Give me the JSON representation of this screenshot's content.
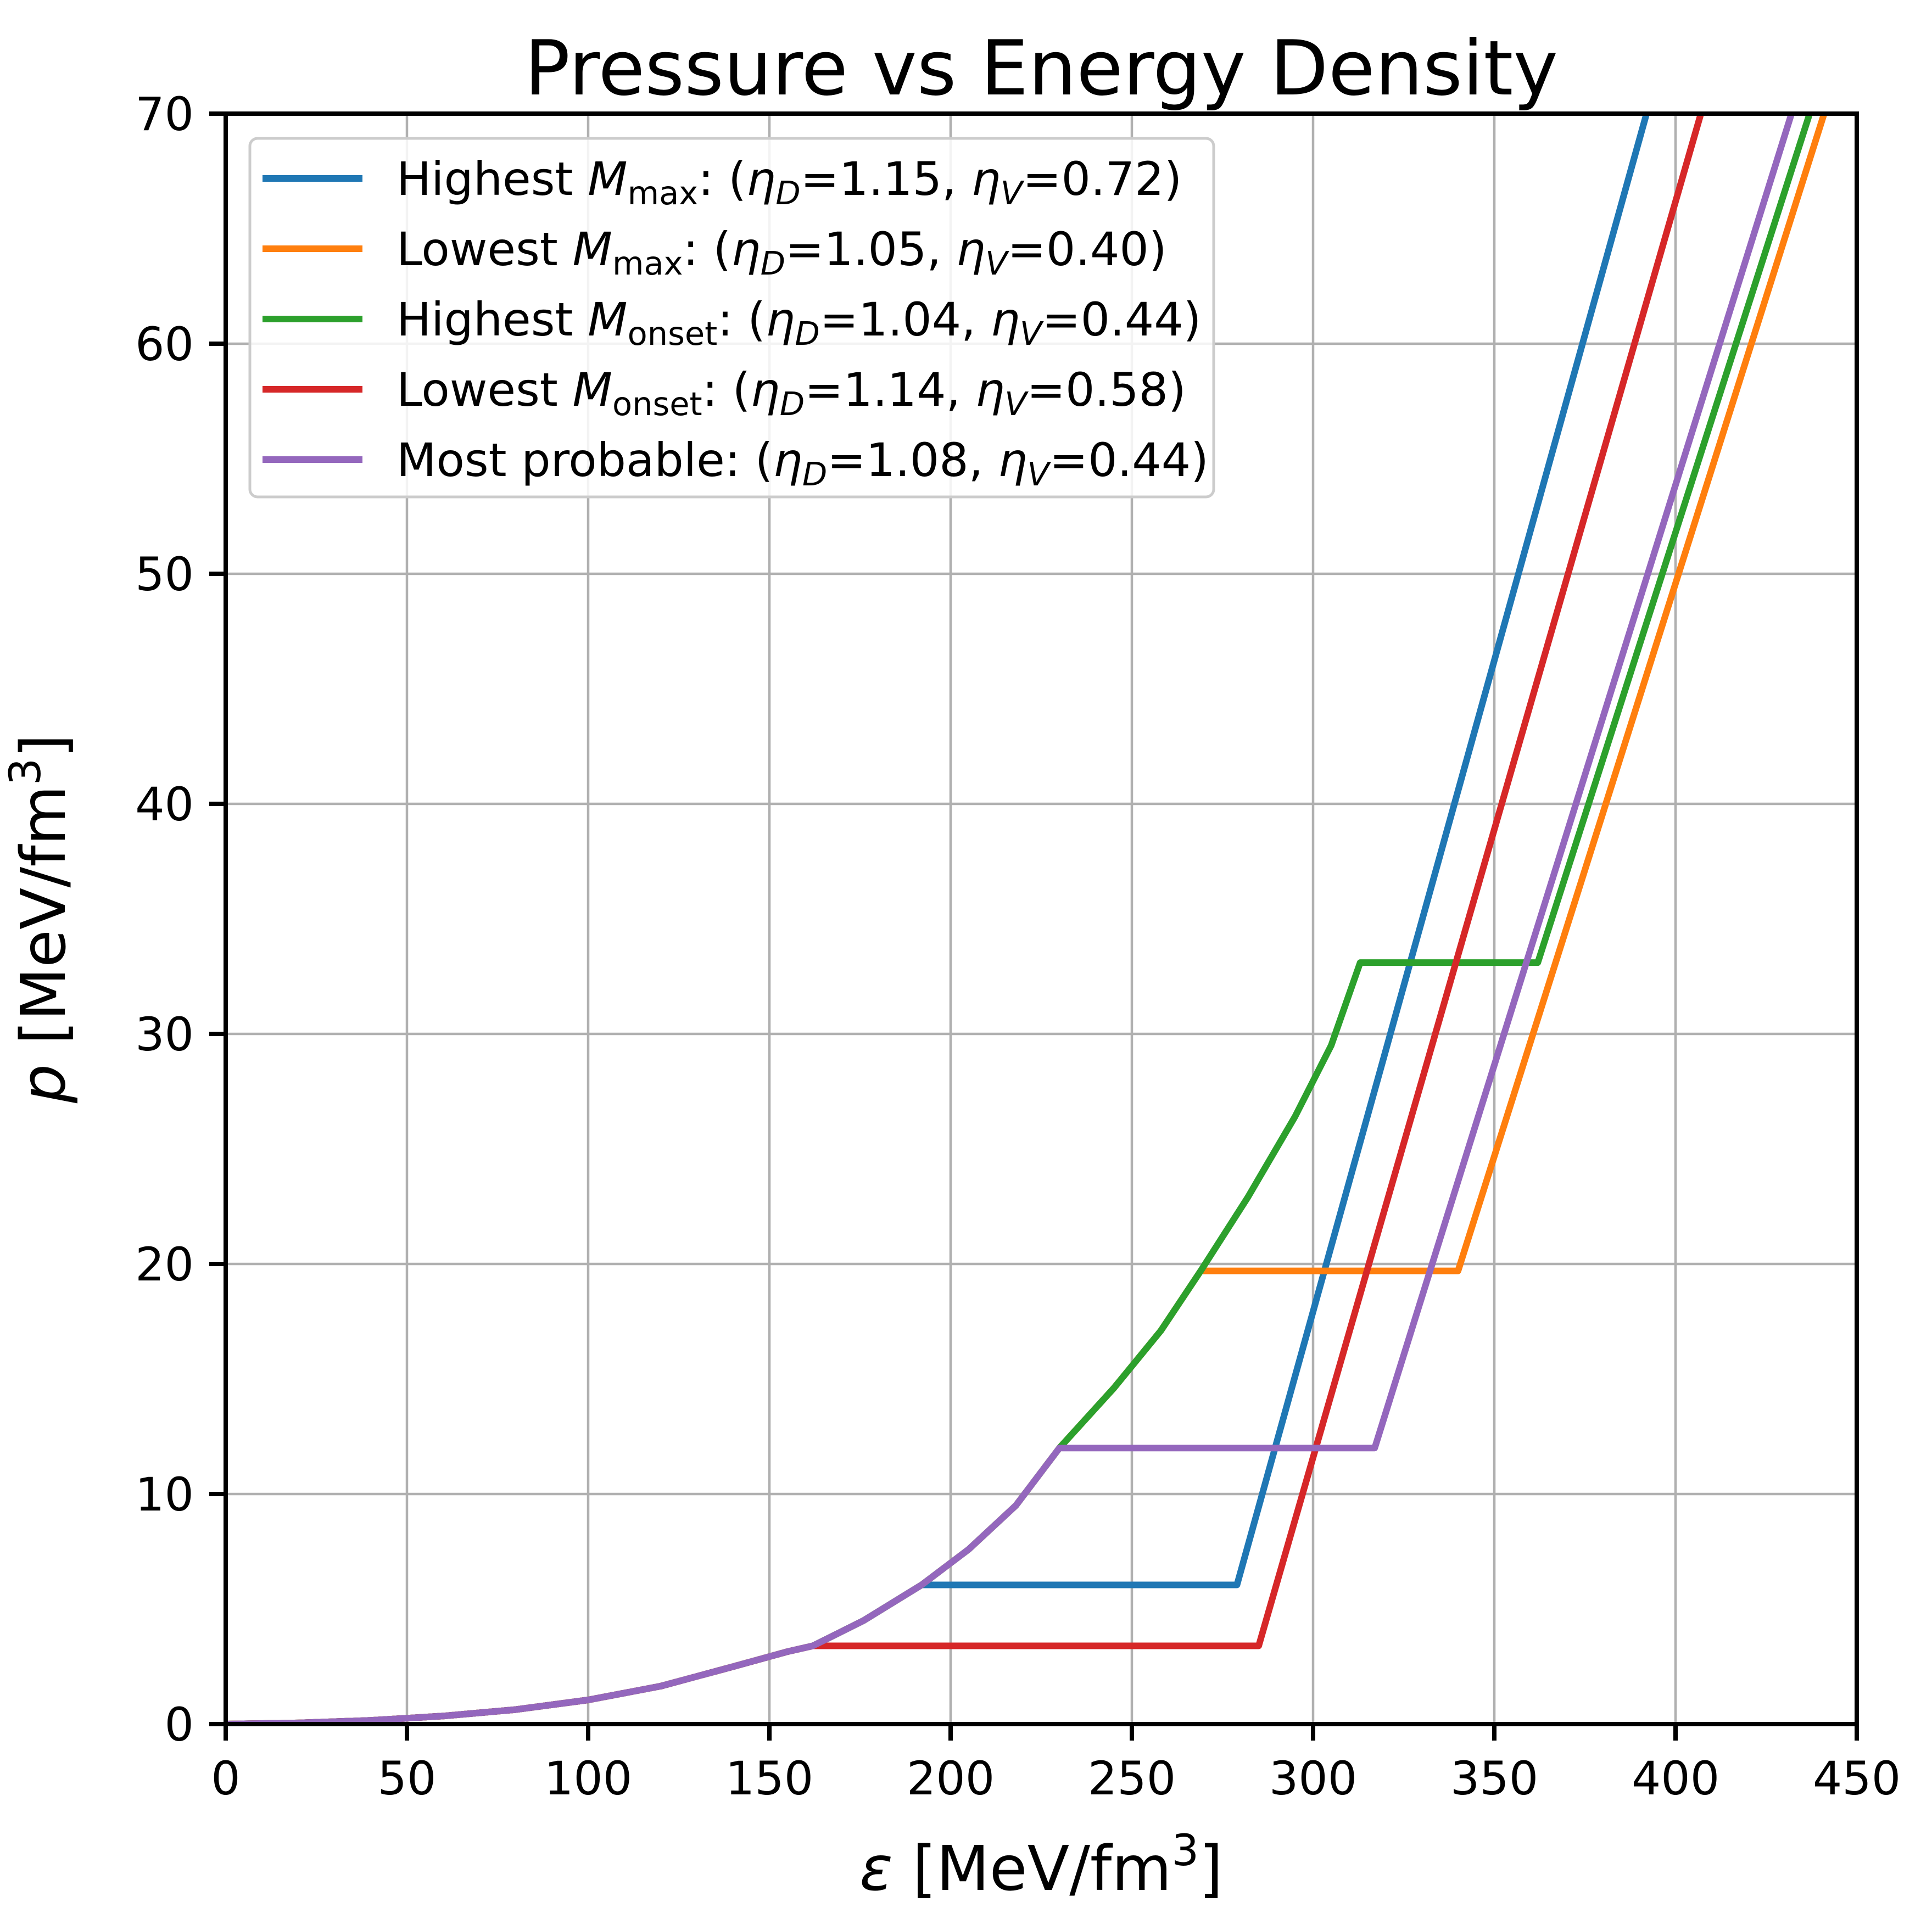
{
  "title": "Pressure vs Energy Density",
  "axes": {
    "x": {
      "label_text": "ε [MeV/fm3]",
      "label_runs": [
        [
          "ε",
          "i"
        ],
        [
          " [MeV/fm",
          "n"
        ],
        [
          "3",
          "sup"
        ],
        [
          "]",
          "n"
        ]
      ],
      "ticks": [
        0,
        50,
        100,
        150,
        200,
        250,
        300,
        350,
        400,
        450
      ],
      "range": [
        0,
        450
      ]
    },
    "y": {
      "label_text": "p [MeV/fm3]",
      "label_runs": [
        [
          "p",
          "i"
        ],
        [
          " [MeV/fm",
          "n"
        ],
        [
          "3",
          "sup"
        ],
        [
          "]",
          "n"
        ]
      ],
      "ticks": [
        0,
        10,
        20,
        30,
        40,
        50,
        60,
        70
      ],
      "range": [
        0,
        70
      ]
    }
  },
  "colors": {
    "grid": "#b0b0b0",
    "spine": "#000000",
    "background": "#ffffff",
    "legend_border": "#cccccc",
    "legend_fill": "#ffffff"
  },
  "legend": {
    "position": "upper left",
    "entries": [
      {
        "name": "highest-mmax",
        "color": "#1f77b4",
        "plain_label": "Highest Mmax: (ηD=1.15, ηV=0.72)",
        "label_runs": [
          [
            "Highest ",
            "n"
          ],
          [
            "M",
            "i"
          ],
          [
            "max",
            "s"
          ],
          [
            ": (",
            "n"
          ],
          [
            "η",
            "i"
          ],
          [
            "D",
            "si"
          ],
          [
            "=1.15, ",
            "n"
          ],
          [
            "η",
            "i"
          ],
          [
            "V",
            "si"
          ],
          [
            "=0.72)",
            "n"
          ]
        ]
      },
      {
        "name": "lowest-mmax",
        "color": "#ff7f0e",
        "plain_label": "Lowest Mmax: (ηD=1.05, ηV=0.40)",
        "label_runs": [
          [
            "Lowest ",
            "n"
          ],
          [
            "M",
            "i"
          ],
          [
            "max",
            "s"
          ],
          [
            ": (",
            "n"
          ],
          [
            "η",
            "i"
          ],
          [
            "D",
            "si"
          ],
          [
            "=1.05, ",
            "n"
          ],
          [
            "η",
            "i"
          ],
          [
            "V",
            "si"
          ],
          [
            "=0.40)",
            "n"
          ]
        ]
      },
      {
        "name": "highest-monset",
        "color": "#2ca02c",
        "plain_label": "Highest Monset: (ηD=1.04, ηV=0.44)",
        "label_runs": [
          [
            "Highest ",
            "n"
          ],
          [
            "M",
            "i"
          ],
          [
            "onset",
            "s"
          ],
          [
            ": (",
            "n"
          ],
          [
            "η",
            "i"
          ],
          [
            "D",
            "si"
          ],
          [
            "=1.04, ",
            "n"
          ],
          [
            "η",
            "i"
          ],
          [
            "V",
            "si"
          ],
          [
            "=0.44)",
            "n"
          ]
        ]
      },
      {
        "name": "lowest-monset",
        "color": "#d62728",
        "plain_label": "Lowest Monset: (ηD=1.14, ηV=0.58)",
        "label_runs": [
          [
            "Lowest ",
            "n"
          ],
          [
            "M",
            "i"
          ],
          [
            "onset",
            "s"
          ],
          [
            ": (",
            "n"
          ],
          [
            "η",
            "i"
          ],
          [
            "D",
            "si"
          ],
          [
            "=1.14, ",
            "n"
          ],
          [
            "η",
            "i"
          ],
          [
            "V",
            "si"
          ],
          [
            "=0.58)",
            "n"
          ]
        ]
      },
      {
        "name": "most-probable",
        "color": "#9467bd",
        "plain_label": "Most probable: (ηD=1.08, ηV=0.44)",
        "label_runs": [
          [
            "Most probable: (",
            "n"
          ],
          [
            "η",
            "i"
          ],
          [
            "D",
            "si"
          ],
          [
            "=1.08, ",
            "n"
          ],
          [
            "η",
            "i"
          ],
          [
            "V",
            "si"
          ],
          [
            "=0.44)",
            "n"
          ]
        ]
      }
    ]
  },
  "chart_data": {
    "type": "line",
    "title": "Pressure vs Energy Density",
    "xlabel": "ε [MeV/fm^3]",
    "ylabel": "p [MeV/fm^3]",
    "xlim": [
      0,
      450
    ],
    "ylim": [
      0,
      70
    ],
    "grid": true,
    "legend_position": "upper left",
    "shared_hadronic_curve": [
      [
        0,
        0
      ],
      [
        20,
        0.05
      ],
      [
        40,
        0.16
      ],
      [
        60,
        0.35
      ],
      [
        80,
        0.63
      ],
      [
        100,
        1.05
      ],
      [
        120,
        1.65
      ],
      [
        140,
        2.5
      ],
      [
        155,
        3.15
      ],
      [
        162,
        3.4
      ],
      [
        176,
        4.5
      ],
      [
        192,
        6.05
      ],
      [
        205,
        7.6
      ],
      [
        218,
        9.5
      ],
      [
        230,
        12.0
      ],
      [
        245,
        14.6
      ],
      [
        258,
        17.1
      ],
      [
        269,
        19.7
      ],
      [
        282,
        22.9
      ],
      [
        295,
        26.4
      ],
      [
        305,
        29.5
      ],
      [
        313,
        33.1
      ]
    ],
    "series": [
      {
        "name": "Highest M_max (eta_D=1.15, eta_V=0.72)",
        "color": "#1f77b4",
        "plateau_pressure": 6.05,
        "plateau_eps": [
          192,
          279
        ],
        "top_exit_eps": 392,
        "points": [
          [
            0,
            0
          ],
          [
            20,
            0.05
          ],
          [
            40,
            0.16
          ],
          [
            60,
            0.35
          ],
          [
            80,
            0.63
          ],
          [
            100,
            1.05
          ],
          [
            120,
            1.65
          ],
          [
            140,
            2.5
          ],
          [
            155,
            3.15
          ],
          [
            162,
            3.4
          ],
          [
            176,
            4.5
          ],
          [
            192,
            6.05
          ],
          [
            279,
            6.05
          ],
          [
            392,
            70
          ]
        ]
      },
      {
        "name": "Lowest M_max (eta_D=1.05, eta_V=0.40)",
        "color": "#ff7f0e",
        "plateau_pressure": 19.7,
        "plateau_eps": [
          269,
          340
        ],
        "top_exit_eps": 441,
        "points": [
          [
            0,
            0
          ],
          [
            20,
            0.05
          ],
          [
            40,
            0.16
          ],
          [
            60,
            0.35
          ],
          [
            80,
            0.63
          ],
          [
            100,
            1.05
          ],
          [
            120,
            1.65
          ],
          [
            140,
            2.5
          ],
          [
            155,
            3.15
          ],
          [
            162,
            3.4
          ],
          [
            176,
            4.5
          ],
          [
            192,
            6.05
          ],
          [
            205,
            7.6
          ],
          [
            218,
            9.5
          ],
          [
            230,
            12.0
          ],
          [
            245,
            14.6
          ],
          [
            258,
            17.1
          ],
          [
            269,
            19.7
          ],
          [
            340,
            19.7
          ],
          [
            441,
            70
          ]
        ]
      },
      {
        "name": "Highest M_onset (eta_D=1.04, eta_V=0.44)",
        "color": "#2ca02c",
        "plateau_pressure": 33.1,
        "plateau_eps": [
          313,
          362
        ],
        "top_exit_eps": 437,
        "points": [
          [
            0,
            0
          ],
          [
            20,
            0.05
          ],
          [
            40,
            0.16
          ],
          [
            60,
            0.35
          ],
          [
            80,
            0.63
          ],
          [
            100,
            1.05
          ],
          [
            120,
            1.65
          ],
          [
            140,
            2.5
          ],
          [
            155,
            3.15
          ],
          [
            162,
            3.4
          ],
          [
            176,
            4.5
          ],
          [
            192,
            6.05
          ],
          [
            205,
            7.6
          ],
          [
            218,
            9.5
          ],
          [
            230,
            12.0
          ],
          [
            245,
            14.6
          ],
          [
            258,
            17.1
          ],
          [
            269,
            19.7
          ],
          [
            282,
            22.9
          ],
          [
            295,
            26.4
          ],
          [
            305,
            29.5
          ],
          [
            313,
            33.1
          ],
          [
            362,
            33.1
          ],
          [
            437,
            70
          ]
        ]
      },
      {
        "name": "Lowest M_onset (eta_D=1.14, eta_V=0.58)",
        "color": "#d62728",
        "plateau_pressure": 3.4,
        "plateau_eps": [
          162,
          285
        ],
        "top_exit_eps": 407,
        "points": [
          [
            0,
            0
          ],
          [
            20,
            0.05
          ],
          [
            40,
            0.16
          ],
          [
            60,
            0.35
          ],
          [
            80,
            0.63
          ],
          [
            100,
            1.05
          ],
          [
            120,
            1.65
          ],
          [
            140,
            2.5
          ],
          [
            155,
            3.15
          ],
          [
            162,
            3.4
          ],
          [
            285,
            3.4
          ],
          [
            407,
            70
          ]
        ]
      },
      {
        "name": "Most probable (eta_D=1.08, eta_V=0.44)",
        "color": "#9467bd",
        "plateau_pressure": 12.0,
        "plateau_eps": [
          230,
          317
        ],
        "top_exit_eps": 432,
        "points": [
          [
            0,
            0
          ],
          [
            20,
            0.05
          ],
          [
            40,
            0.16
          ],
          [
            60,
            0.35
          ],
          [
            80,
            0.63
          ],
          [
            100,
            1.05
          ],
          [
            120,
            1.65
          ],
          [
            140,
            2.5
          ],
          [
            155,
            3.15
          ],
          [
            162,
            3.4
          ],
          [
            176,
            4.5
          ],
          [
            192,
            6.05
          ],
          [
            205,
            7.6
          ],
          [
            218,
            9.5
          ],
          [
            230,
            12.0
          ],
          [
            317,
            12.0
          ],
          [
            432,
            70
          ]
        ]
      }
    ]
  }
}
